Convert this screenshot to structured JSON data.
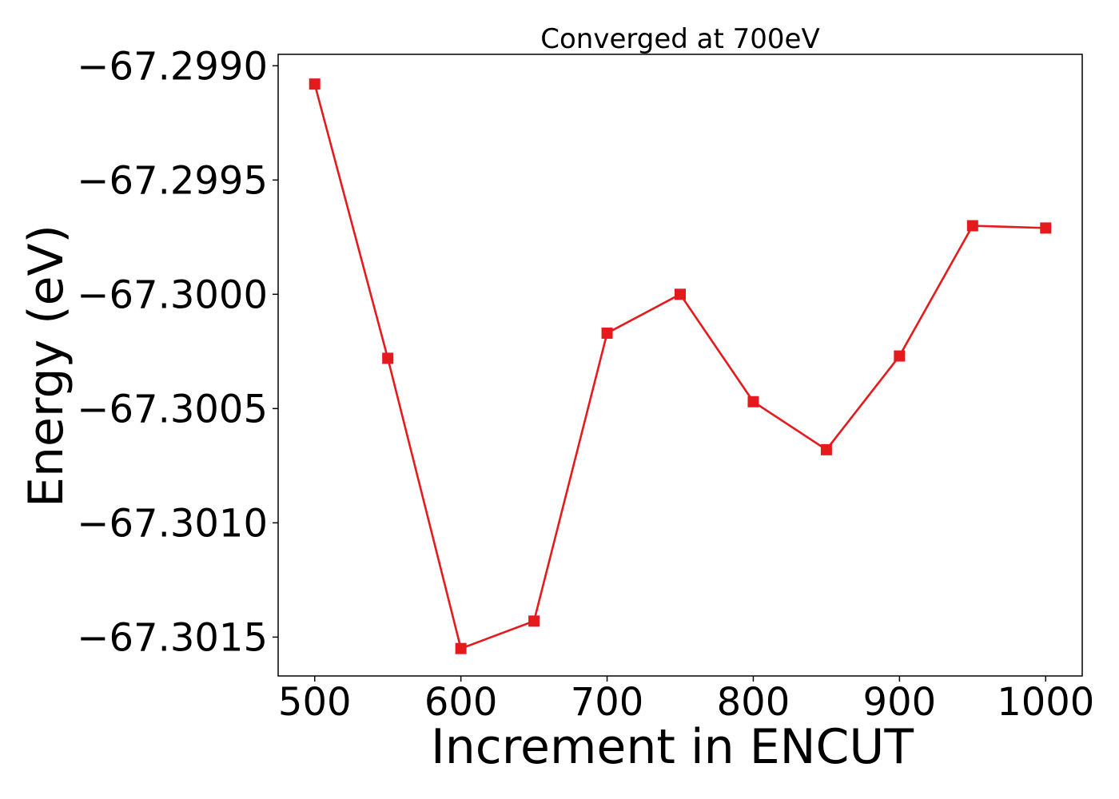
{
  "chart_data": {
    "type": "line",
    "title": "Converged at 700eV",
    "xlabel": "Increment in ENCUT",
    "ylabel": "Energy (eV)",
    "xlim": [
      475,
      1025
    ],
    "ylim": [
      -67.30167,
      -67.29895
    ],
    "xticks": [
      500,
      600,
      700,
      800,
      900,
      1000
    ],
    "xtick_labels": [
      "500",
      "600",
      "700",
      "800",
      "900",
      "1000"
    ],
    "yticks": [
      -67.299,
      -67.2995,
      -67.3,
      -67.3005,
      -67.301,
      -67.3015
    ],
    "ytick_labels": [
      "−67.2990",
      "−67.2995",
      "−67.3000",
      "−67.3005",
      "−67.3010",
      "−67.3015"
    ],
    "grid": false,
    "legend": "none",
    "series": [
      {
        "color": "#e41a1c",
        "marker": "square",
        "x": [
          500,
          550,
          600,
          650,
          700,
          750,
          800,
          850,
          900,
          950,
          1000
        ],
        "y": [
          -67.29908,
          -67.30028,
          -67.30155,
          -67.30143,
          -67.30017,
          -67.3,
          -67.30047,
          -67.30068,
          -67.30027,
          -67.2997,
          -67.29971
        ]
      }
    ]
  }
}
